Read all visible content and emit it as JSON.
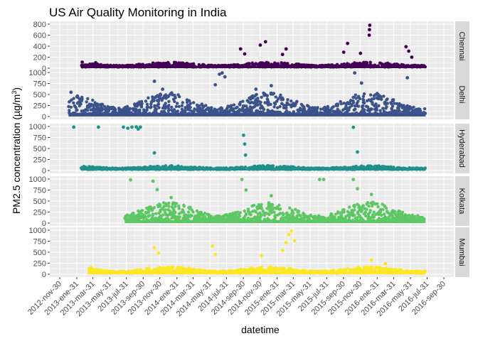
{
  "chart_data": {
    "type": "scatter",
    "title": "US Air Quality Monitoring in India",
    "xlabel": "datetime",
    "ylabel_main": "PM2.5 concentration (µg/m",
    "ylabel_sup": "3",
    "ylabel_close": ")",
    "x_ticks": [
      "2012-nov-30",
      "2013-ene-31",
      "2013-mar-31",
      "2013-may-31",
      "2013-jul-31",
      "2013-sep-30",
      "2013-nov-30",
      "2014-ene-31",
      "2014-mar-31",
      "2014-may-31",
      "2014-jul-31",
      "2014-sep-30",
      "2014-nov-30",
      "2015-ene-31",
      "2015-mar-31",
      "2015-may-31",
      "2015-jul-31",
      "2015-sep-30",
      "2015-nov-30",
      "2016-ene-31",
      "2016-mar-31",
      "2016-may-31",
      "2016-jul-31",
      "2016-sep-30"
    ],
    "x_start": "2012-11-30",
    "x_end": "2016-09-30",
    "grid": true,
    "panels": [
      {
        "name": "Chennai",
        "color": "#440154",
        "ylim": [
          0,
          800
        ],
        "yticks": [
          0,
          200,
          400,
          600,
          800
        ],
        "data_start": "2013-02-15",
        "data_end": "2016-07-25",
        "base": 22,
        "band": [
          35,
          110
        ],
        "spikes": [
          {
            "x": "2013-02-20",
            "y": 110
          },
          {
            "x": "2013-04-10",
            "y": 100
          },
          {
            "x": "2014-09-20",
            "y": 350
          },
          {
            "x": "2014-10-05",
            "y": 260
          },
          {
            "x": "2014-12-01",
            "y": 420
          },
          {
            "x": "2014-12-20",
            "y": 480
          },
          {
            "x": "2015-02-20",
            "y": 250
          },
          {
            "x": "2015-03-05",
            "y": 350
          },
          {
            "x": "2015-10-01",
            "y": 290
          },
          {
            "x": "2015-10-15",
            "y": 450
          },
          {
            "x": "2015-12-01",
            "y": 270
          },
          {
            "x": "2016-01-02",
            "y": 600
          },
          {
            "x": "2016-01-03",
            "y": 700
          },
          {
            "x": "2016-01-04",
            "y": 780
          },
          {
            "x": "2016-05-15",
            "y": 390
          },
          {
            "x": "2016-05-25",
            "y": 310
          },
          {
            "x": "2016-06-05",
            "y": 200
          }
        ]
      },
      {
        "name": "Delhi",
        "color": "#3b528b",
        "ylim": [
          0,
          1000
        ],
        "yticks": [
          0,
          250,
          500,
          750,
          1000
        ],
        "data_start": "2013-01-01",
        "data_end": "2016-07-25",
        "base": 60,
        "band": [
          90,
          550
        ],
        "spikes": [
          {
            "x": "2013-01-10",
            "y": 550
          },
          {
            "x": "2013-11-10",
            "y": 800
          },
          {
            "x": "2013-12-10",
            "y": 620
          },
          {
            "x": "2014-06-20",
            "y": 720
          },
          {
            "x": "2014-07-05",
            "y": 960
          },
          {
            "x": "2014-07-15",
            "y": 990
          },
          {
            "x": "2014-07-25",
            "y": 900
          },
          {
            "x": "2014-11-15",
            "y": 620
          },
          {
            "x": "2015-01-10",
            "y": 700
          },
          {
            "x": "2015-11-10",
            "y": 990
          },
          {
            "x": "2015-12-05",
            "y": 760
          },
          {
            "x": "2016-05-20",
            "y": 880
          }
        ]
      },
      {
        "name": "Hyderabad",
        "color": "#21908c",
        "ylim": [
          0,
          1000
        ],
        "yticks": [
          0,
          250,
          500,
          750,
          1000
        ],
        "data_start": "2013-02-15",
        "data_end": "2016-07-25",
        "base": 25,
        "band": [
          40,
          110
        ],
        "spikes": [
          {
            "x": "2013-01-20",
            "y": 985
          },
          {
            "x": "2013-04-20",
            "y": 985
          },
          {
            "x": "2013-07-20",
            "y": 985
          },
          {
            "x": "2013-08-05",
            "y": 960
          },
          {
            "x": "2013-08-20",
            "y": 985
          },
          {
            "x": "2013-09-05",
            "y": 990
          },
          {
            "x": "2013-09-12",
            "y": 940
          },
          {
            "x": "2013-09-20",
            "y": 985
          },
          {
            "x": "2013-11-10",
            "y": 400
          },
          {
            "x": "2014-10-01",
            "y": 800
          },
          {
            "x": "2014-10-05",
            "y": 600
          },
          {
            "x": "2014-10-08",
            "y": 350
          },
          {
            "x": "2015-11-05",
            "y": 980
          },
          {
            "x": "2015-11-20",
            "y": 420
          }
        ]
      },
      {
        "name": "Kolkata",
        "color": "#5dc863",
        "ylim": [
          0,
          1000
        ],
        "yticks": [
          0,
          250,
          500,
          750,
          1000
        ],
        "data_start": "2013-07-25",
        "data_end": "2016-07-25",
        "base": 45,
        "band": [
          70,
          480
        ],
        "spikes": [
          {
            "x": "2013-08-15",
            "y": 980
          },
          {
            "x": "2013-11-05",
            "y": 950
          },
          {
            "x": "2013-11-20",
            "y": 760
          },
          {
            "x": "2014-01-10",
            "y": 580
          },
          {
            "x": "2014-09-25",
            "y": 990
          },
          {
            "x": "2014-10-10",
            "y": 750
          },
          {
            "x": "2015-01-10",
            "y": 620
          },
          {
            "x": "2015-07-05",
            "y": 990
          },
          {
            "x": "2015-07-20",
            "y": 990
          },
          {
            "x": "2015-11-05",
            "y": 990
          },
          {
            "x": "2015-11-20",
            "y": 780
          },
          {
            "x": "2016-01-10",
            "y": 650
          }
        ]
      },
      {
        "name": "Mumbai",
        "color": "#fde725",
        "ylim": [
          0,
          1000
        ],
        "yticks": [
          0,
          250,
          500,
          750,
          1000
        ],
        "data_start": "2013-03-15",
        "data_end": "2016-07-25",
        "base": 25,
        "band": [
          40,
          170
        ],
        "spikes": [
          {
            "x": "2013-03-25",
            "y": 150
          },
          {
            "x": "2013-11-10",
            "y": 600
          },
          {
            "x": "2013-11-25",
            "y": 480
          },
          {
            "x": "2014-06-10",
            "y": 640
          },
          {
            "x": "2014-06-20",
            "y": 450
          },
          {
            "x": "2014-12-05",
            "y": 420
          },
          {
            "x": "2015-02-20",
            "y": 540
          },
          {
            "x": "2015-03-05",
            "y": 720
          },
          {
            "x": "2015-03-15",
            "y": 900
          },
          {
            "x": "2015-03-25",
            "y": 980
          },
          {
            "x": "2015-04-05",
            "y": 760
          },
          {
            "x": "2016-01-10",
            "y": 320
          },
          {
            "x": "2016-03-01",
            "y": 240
          }
        ]
      }
    ]
  }
}
